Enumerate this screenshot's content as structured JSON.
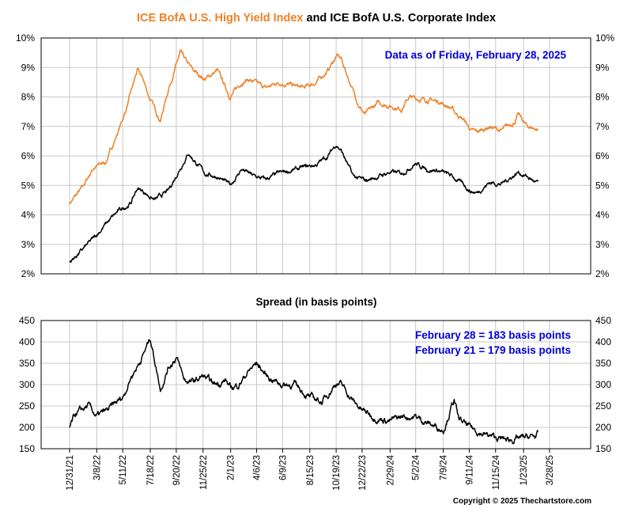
{
  "colors": {
    "high_yield": "#f07f24",
    "corporate": "#000000",
    "spread": "#000000",
    "annotation": "#0000dd",
    "grid": "#c8c8c8"
  },
  "copyright": "Copyright © 2025 Thechartstore.com",
  "chart_data": [
    {
      "type": "line",
      "title_parts": [
        {
          "text": "ICE BofA U.S. High Yield Index",
          "color": "#f07f24"
        },
        {
          "text": " and ICE BofA U.S. Corporate Index",
          "color": "#000000"
        }
      ],
      "annotation": "Data as of Friday, February 28, 2025",
      "x_range": [
        "2021-12-31",
        "2025-03-28"
      ],
      "ylim": [
        2,
        10
      ],
      "yticks": [
        "2%",
        "3%",
        "4%",
        "5%",
        "6%",
        "7%",
        "8%",
        "9%",
        "10%"
      ],
      "grid": true,
      "series": [
        {
          "key": "high_yield",
          "color": "#f07f24",
          "x": [
            "2021-12-31",
            "2022-01-31",
            "2022-02-28",
            "2022-03-31",
            "2022-04-29",
            "2022-05-20",
            "2022-06-16",
            "2022-06-30",
            "2022-07-15",
            "2022-08-12",
            "2022-09-01",
            "2022-09-30",
            "2022-10-14",
            "2022-10-31",
            "2022-11-30",
            "2022-12-30",
            "2023-01-31",
            "2023-02-28",
            "2023-03-16",
            "2023-03-31",
            "2023-04-28",
            "2023-05-31",
            "2023-06-30",
            "2023-07-31",
            "2023-08-31",
            "2023-09-29",
            "2023-10-20",
            "2023-10-31",
            "2023-11-30",
            "2023-12-15",
            "2023-12-29",
            "2024-01-31",
            "2024-02-29",
            "2024-03-28",
            "2024-04-16",
            "2024-04-30",
            "2024-05-31",
            "2024-06-28",
            "2024-07-31",
            "2024-08-05",
            "2024-08-30",
            "2024-09-16",
            "2024-09-30",
            "2024-10-31",
            "2024-11-29",
            "2024-12-31",
            "2025-01-10",
            "2025-01-31",
            "2025-02-28"
          ],
          "y": [
            4.4,
            4.9,
            5.6,
            5.8,
            6.8,
            7.6,
            8.9,
            8.6,
            8.0,
            7.2,
            8.3,
            9.5,
            9.2,
            8.9,
            8.6,
            8.9,
            8.0,
            8.5,
            8.6,
            8.5,
            8.3,
            8.5,
            8.4,
            8.3,
            8.5,
            8.9,
            9.4,
            9.3,
            8.2,
            7.7,
            7.4,
            7.8,
            7.7,
            7.6,
            8.0,
            7.95,
            7.9,
            7.85,
            7.6,
            7.5,
            7.2,
            6.85,
            6.8,
            7.0,
            6.85,
            7.15,
            7.4,
            7.0,
            6.9
          ]
        },
        {
          "key": "corporate",
          "color": "#000000",
          "x": [
            "2021-12-31",
            "2022-01-31",
            "2022-02-28",
            "2022-03-31",
            "2022-04-29",
            "2022-05-31",
            "2022-06-16",
            "2022-06-30",
            "2022-07-29",
            "2022-08-31",
            "2022-09-30",
            "2022-10-20",
            "2022-10-31",
            "2022-11-30",
            "2022-12-30",
            "2023-01-31",
            "2023-02-28",
            "2023-03-31",
            "2023-04-28",
            "2023-05-31",
            "2023-06-30",
            "2023-07-31",
            "2023-08-31",
            "2023-09-29",
            "2023-10-19",
            "2023-10-31",
            "2023-11-30",
            "2023-12-29",
            "2024-01-31",
            "2024-02-29",
            "2024-03-28",
            "2024-04-30",
            "2024-05-31",
            "2024-06-28",
            "2024-07-31",
            "2024-08-30",
            "2024-09-16",
            "2024-09-30",
            "2024-10-31",
            "2024-11-29",
            "2024-12-31",
            "2025-01-10",
            "2025-01-31",
            "2025-02-28"
          ],
          "y": [
            2.4,
            2.8,
            3.2,
            3.7,
            4.1,
            4.4,
            4.9,
            4.8,
            4.5,
            4.8,
            5.6,
            6.1,
            5.9,
            5.4,
            5.3,
            5.0,
            5.55,
            5.3,
            5.2,
            5.4,
            5.5,
            5.6,
            5.7,
            6.0,
            6.4,
            6.2,
            5.3,
            5.15,
            5.3,
            5.45,
            5.4,
            5.75,
            5.55,
            5.5,
            5.3,
            5.0,
            4.8,
            4.75,
            5.1,
            5.05,
            5.35,
            5.45,
            5.3,
            5.05
          ]
        }
      ]
    },
    {
      "type": "line",
      "title": "Spread (in basis points)",
      "annotations": [
        "February 28 = 183 basis points",
        "February 21 = 179 basis points"
      ],
      "x_range": [
        "2021-12-31",
        "2025-03-28"
      ],
      "ylim": [
        150,
        450
      ],
      "yticks": [
        "150",
        "200",
        "250",
        "300",
        "350",
        "400",
        "450"
      ],
      "xticks": [
        "12/31/21",
        "3/8/22",
        "5/11/22",
        "7/18/22",
        "9/20/22",
        "11/25/22",
        "2/1/23",
        "4/6/23",
        "6/9/23",
        "8/15/23",
        "10/19/23",
        "12/22/23",
        "2/29/24",
        "5/2/24",
        "7/9/24",
        "9/11/24",
        "11/15/24",
        "1/23/25",
        "3/28/25"
      ],
      "grid": true,
      "series": [
        {
          "key": "spread",
          "color": "#000000",
          "x": [
            "2021-12-31",
            "2022-01-15",
            "2022-02-15",
            "2022-03-08",
            "2022-04-05",
            "2022-05-11",
            "2022-06-01",
            "2022-06-20",
            "2022-07-05",
            "2022-07-18",
            "2022-08-12",
            "2022-08-31",
            "2022-09-20",
            "2022-10-10",
            "2022-11-01",
            "2022-11-25",
            "2022-12-20",
            "2023-01-20",
            "2023-02-01",
            "2023-02-20",
            "2023-03-16",
            "2023-04-06",
            "2023-05-01",
            "2023-06-09",
            "2023-07-10",
            "2023-08-15",
            "2023-09-15",
            "2023-10-19",
            "2023-11-01",
            "2023-12-01",
            "2023-12-22",
            "2024-01-20",
            "2024-02-29",
            "2024-04-01",
            "2024-05-02",
            "2024-06-01",
            "2024-07-09",
            "2024-08-05",
            "2024-08-15",
            "2024-09-11",
            "2024-10-15",
            "2024-11-15",
            "2024-12-15",
            "2025-01-23",
            "2025-02-21",
            "2025-02-28"
          ],
          "y": [
            200,
            230,
            250,
            225,
            240,
            270,
            320,
            350,
            380,
            410,
            290,
            340,
            365,
            310,
            305,
            320,
            300,
            310,
            290,
            300,
            330,
            350,
            320,
            300,
            300,
            270,
            260,
            305,
            300,
            260,
            240,
            225,
            215,
            225,
            225,
            210,
            195,
            265,
            220,
            200,
            185,
            175,
            170,
            175,
            179,
            183
          ]
        }
      ]
    }
  ]
}
